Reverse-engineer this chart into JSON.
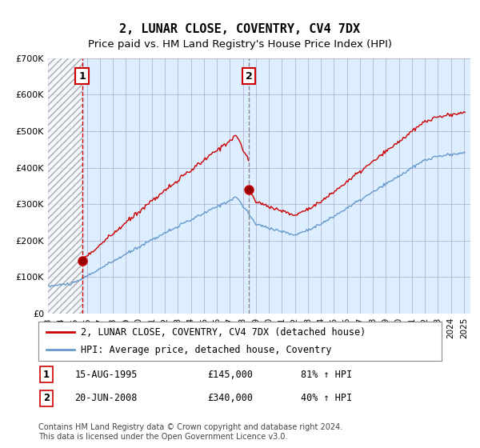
{
  "title": "2, LUNAR CLOSE, COVENTRY, CV4 7DX",
  "subtitle": "Price paid vs. HM Land Registry's House Price Index (HPI)",
  "ylim": [
    0,
    700000
  ],
  "yticks": [
    0,
    100000,
    200000,
    300000,
    400000,
    500000,
    600000,
    700000
  ],
  "ytick_labels": [
    "£0",
    "£100K",
    "£200K",
    "£300K",
    "£400K",
    "£500K",
    "£600K",
    "£700K"
  ],
  "sale1_date": 1995.62,
  "sale1_price": 145000,
  "sale2_date": 2008.47,
  "sale2_price": 340000,
  "red_line_color": "#cc0000",
  "blue_line_color": "#6699cc",
  "bg_color": "#ddeeff",
  "grid_color": "#aaaacc",
  "vline1_color": "#cc0000",
  "vline2_color": "#888888",
  "legend_label1": "2, LUNAR CLOSE, COVENTRY, CV4 7DX (detached house)",
  "legend_label2": "HPI: Average price, detached house, Coventry",
  "footer": "Contains HM Land Registry data © Crown copyright and database right 2024.\nThis data is licensed under the Open Government Licence v3.0.",
  "title_fontsize": 11,
  "subtitle_fontsize": 9.5,
  "tick_fontsize": 8
}
